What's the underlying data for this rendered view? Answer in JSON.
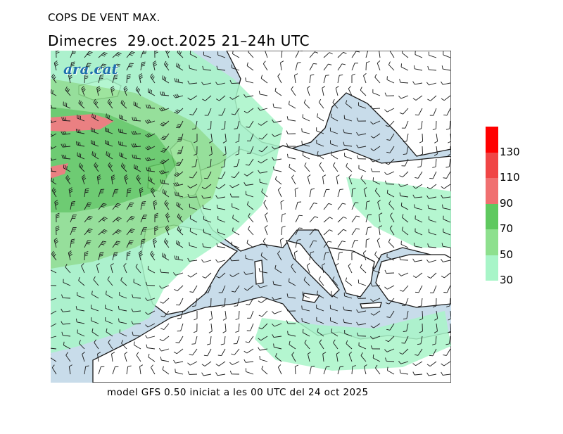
{
  "header": {
    "title": "COPS DE VENT MAX.",
    "subtitle": "Dimecres  29.oct.2025 21–24h UTC"
  },
  "logo": {
    "text": "ara.cat"
  },
  "footer": {
    "text": "model GFS 0.50 iniciat a les 00 UTC del 24 oct 2025"
  },
  "legend": {
    "levels": [
      {
        "label": "30",
        "color": "#a8f5c8"
      },
      {
        "label": "50",
        "color": "#8ee08e"
      },
      {
        "label": "70",
        "color": "#5fc95f"
      },
      {
        "label": "90",
        "color": "#f07070"
      },
      {
        "label": "110",
        "color": "#f04545"
      },
      {
        "label": "130",
        "color": "#ff0000"
      }
    ]
  },
  "colors": {
    "sea": "#c8dcea",
    "land": "#ffffff",
    "coast": "#1a1a1a",
    "wind_light": "#a8f5c8",
    "wind_mid": "#8ee08e",
    "wind_strong": "#5fc95f",
    "wind_storm": "#f07070"
  }
}
